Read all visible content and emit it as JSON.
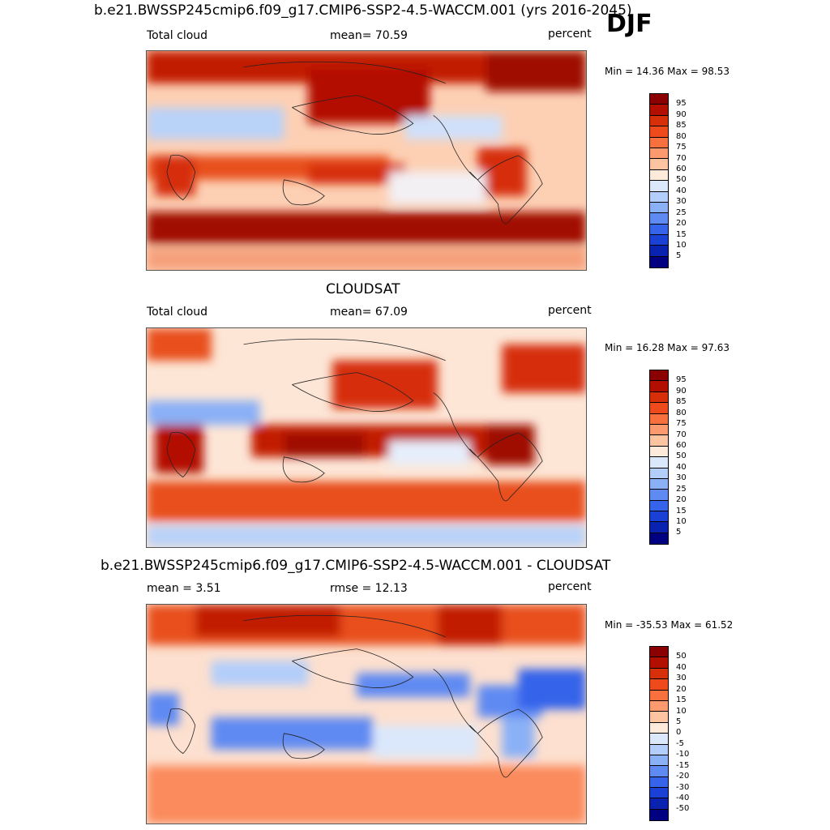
{
  "season": "DJF",
  "panels": [
    {
      "title": "b.e21.BWSSP245cmip6.f09_g17.CMIP6-SSP2-4.5-WACCM.001 (yrs 2016-2045)",
      "left_label": "Total cloud",
      "center_label": "mean=  70.59",
      "units": "percent",
      "minmax": "Min =  14.36 Max =  98.53",
      "colorbar_labels": [
        "95",
        "90",
        "85",
        "80",
        "75",
        "70",
        "60",
        "50",
        "40",
        "30",
        "25",
        "20",
        "15",
        "10",
        "5"
      ],
      "colorbar_colors": [
        "#8b0000",
        "#b30f00",
        "#d62f0a",
        "#ee4a1c",
        "#f8703e",
        "#fb9a6f",
        "#fdc4a2",
        "#feeadb",
        "#dbe8fb",
        "#b3cefa",
        "#8ab0f6",
        "#5e8af2",
        "#3563ea",
        "#1a40d6",
        "#0a22b0",
        "#000080"
      ]
    },
    {
      "title": "CLOUDSAT",
      "left_label": "Total cloud",
      "center_label": "mean=  67.09",
      "units": "percent",
      "minmax": "Min =  16.28 Max =  97.63",
      "colorbar_labels": [
        "95",
        "90",
        "85",
        "80",
        "75",
        "70",
        "60",
        "50",
        "40",
        "30",
        "25",
        "20",
        "15",
        "10",
        "5"
      ],
      "colorbar_colors": [
        "#8b0000",
        "#b30f00",
        "#d62f0a",
        "#ee4a1c",
        "#f8703e",
        "#fb9a6f",
        "#fdc4a2",
        "#feeadb",
        "#dbe8fb",
        "#b3cefa",
        "#8ab0f6",
        "#5e8af2",
        "#3563ea",
        "#1a40d6",
        "#0a22b0",
        "#000080"
      ]
    },
    {
      "title": "b.e21.BWSSP245cmip6.f09_g17.CMIP6-SSP2-4.5-WACCM.001 - CLOUDSAT",
      "left_label": "mean =   3.51",
      "center_label": "rmse =  12.13",
      "units": "percent",
      "minmax": "Min = -35.53 Max =  61.52",
      "colorbar_labels": [
        "50",
        "40",
        "30",
        "20",
        "15",
        "10",
        "5",
        "0",
        "-5",
        "-10",
        "-15",
        "-20",
        "-30",
        "-40",
        "-50"
      ],
      "colorbar_colors": [
        "#8b0000",
        "#b30f00",
        "#d62f0a",
        "#ee4a1c",
        "#f8703e",
        "#fb9a6f",
        "#fdc4a2",
        "#feeadb",
        "#dbe8fb",
        "#b3cefa",
        "#8ab0f6",
        "#5e8af2",
        "#3563ea",
        "#1a40d6",
        "#0a22b0",
        "#000080"
      ]
    }
  ]
}
